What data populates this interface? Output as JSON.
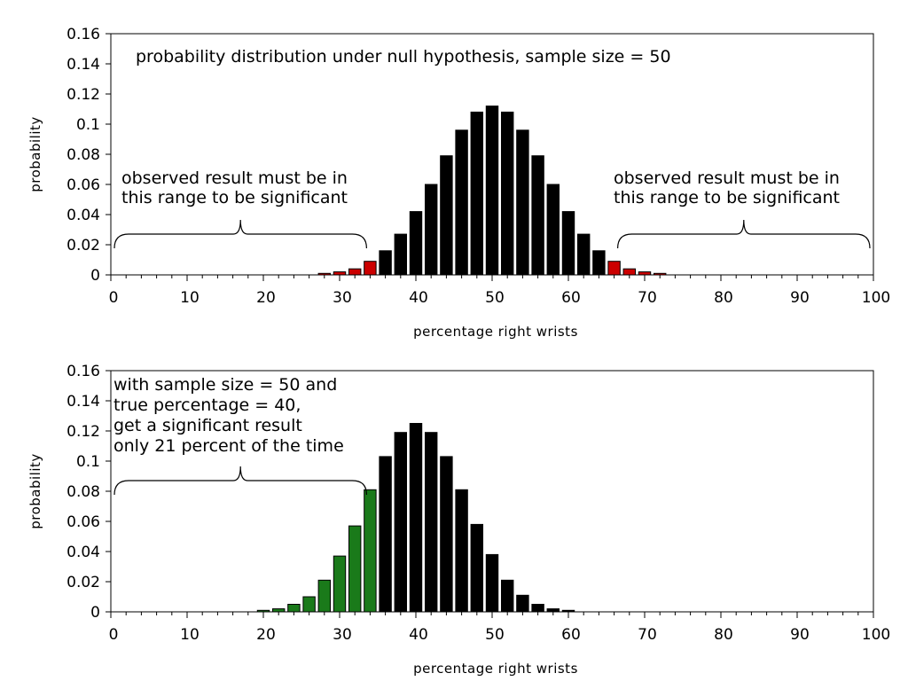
{
  "chart_data": [
    {
      "type": "bar",
      "title": "probability distribution under null hypothesis, sample size = 50",
      "xlabel": "percentage right wrists",
      "ylabel": "probability",
      "xlim": [
        0,
        100
      ],
      "ylim": [
        0,
        0.16
      ],
      "xticks": [
        0,
        10,
        20,
        30,
        40,
        50,
        60,
        70,
        80,
        90,
        100
      ],
      "yticks": [
        "0",
        "0.02",
        "0.04",
        "0.06",
        "0.08",
        "0.1",
        "0.12",
        "0.14",
        "0.16"
      ],
      "grid": false,
      "annotations": [
        {
          "lines": [
            "observed result must be in",
            "this range to be significant"
          ],
          "side": "left"
        },
        {
          "lines": [
            "observed result must be in",
            "this range to be significant"
          ],
          "side": "right"
        }
      ],
      "braces": [
        {
          "from": 0,
          "to": 34
        },
        {
          "from": 66,
          "to": 100
        }
      ],
      "colors": {
        "significant": "#cc0000",
        "other": "#000000"
      },
      "x": [
        28,
        30,
        32,
        34,
        36,
        38,
        40,
        42,
        44,
        46,
        48,
        50,
        52,
        54,
        56,
        58,
        60,
        62,
        64,
        66,
        68,
        70,
        72
      ],
      "values": [
        0.001,
        0.002,
        0.004,
        0.009,
        0.016,
        0.027,
        0.042,
        0.06,
        0.079,
        0.096,
        0.108,
        0.112,
        0.108,
        0.096,
        0.079,
        0.06,
        0.042,
        0.027,
        0.016,
        0.009,
        0.004,
        0.002,
        0.001
      ],
      "significant": [
        true,
        true,
        true,
        true,
        false,
        false,
        false,
        false,
        false,
        false,
        false,
        false,
        false,
        false,
        false,
        false,
        false,
        false,
        false,
        true,
        true,
        true,
        true
      ]
    },
    {
      "type": "bar",
      "title": "",
      "xlabel": "percentage right wrists",
      "ylabel": "probability",
      "xlim": [
        0,
        100
      ],
      "ylim": [
        0,
        0.16
      ],
      "xticks": [
        0,
        10,
        20,
        30,
        40,
        50,
        60,
        70,
        80,
        90,
        100
      ],
      "yticks": [
        "0",
        "0.02",
        "0.04",
        "0.06",
        "0.08",
        "0.1",
        "0.12",
        "0.14",
        "0.16"
      ],
      "grid": false,
      "annotations": [
        {
          "lines": [
            "with sample size = 50 and",
            "true percentage = 40,",
            "get a significant result",
            "only 21 percent of the time"
          ],
          "side": "left"
        }
      ],
      "braces": [
        {
          "from": 0,
          "to": 34
        }
      ],
      "colors": {
        "significant": "#1a7a1a",
        "other": "#000000"
      },
      "x": [
        20,
        22,
        24,
        26,
        28,
        30,
        32,
        34,
        36,
        38,
        40,
        42,
        44,
        46,
        48,
        50,
        52,
        54,
        56,
        58,
        60
      ],
      "values": [
        0.001,
        0.002,
        0.005,
        0.01,
        0.021,
        0.037,
        0.057,
        0.081,
        0.103,
        0.119,
        0.125,
        0.119,
        0.103,
        0.081,
        0.058,
        0.038,
        0.021,
        0.011,
        0.005,
        0.002,
        0.001
      ],
      "significant": [
        true,
        true,
        true,
        true,
        true,
        true,
        true,
        true,
        false,
        false,
        false,
        false,
        false,
        false,
        false,
        false,
        false,
        false,
        false,
        false,
        false
      ]
    }
  ]
}
